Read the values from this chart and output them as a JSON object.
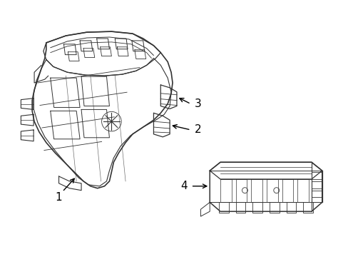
{
  "background_color": "#ffffff",
  "line_color": "#333333",
  "label_color": "#000000",
  "figure_width": 4.89,
  "figure_height": 3.6,
  "dpi": 100
}
